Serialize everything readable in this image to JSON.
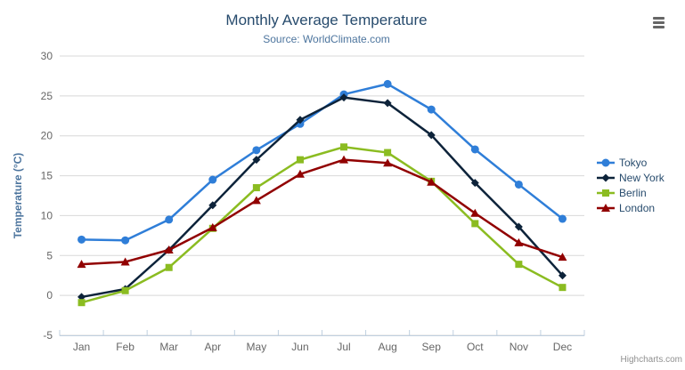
{
  "chart": {
    "title": "Monthly Average Temperature",
    "subtitle": "Source: WorldClimate.com",
    "credits": "Highcharts.com"
  },
  "icons": {
    "context_menu": "hamburger-icon"
  },
  "chart_data": {
    "type": "line",
    "title": "Monthly Average Temperature",
    "subtitle": "Source: WorldClimate.com",
    "categories": [
      "Jan",
      "Feb",
      "Mar",
      "Apr",
      "May",
      "Jun",
      "Jul",
      "Aug",
      "Sep",
      "Oct",
      "Nov",
      "Dec"
    ],
    "series": [
      {
        "name": "Tokyo",
        "marker": "circle",
        "color": "#2f7ed8",
        "values": [
          7.0,
          6.9,
          9.5,
          14.5,
          18.2,
          21.5,
          25.2,
          26.5,
          23.3,
          18.3,
          13.9,
          9.6
        ]
      },
      {
        "name": "New York",
        "marker": "diamond",
        "color": "#0d233a",
        "values": [
          -0.2,
          0.8,
          5.7,
          11.3,
          17.0,
          22.0,
          24.8,
          24.1,
          20.1,
          14.1,
          8.6,
          2.5
        ]
      },
      {
        "name": "Berlin",
        "marker": "square",
        "color": "#8bbc21",
        "values": [
          -0.9,
          0.6,
          3.5,
          8.4,
          13.5,
          17.0,
          18.6,
          17.9,
          14.3,
          9.0,
          3.9,
          1.0
        ]
      },
      {
        "name": "London",
        "marker": "triangle",
        "color": "#910000",
        "values": [
          3.9,
          4.2,
          5.7,
          8.5,
          11.9,
          15.2,
          17.0,
          16.6,
          14.2,
          10.3,
          6.6,
          4.8
        ]
      }
    ],
    "xlabel": "",
    "ylabel": "Temperature (°C)",
    "ylim": [
      -5,
      30
    ],
    "ytick_step": 5,
    "yticks": [
      -5,
      0,
      5,
      10,
      15,
      20,
      25,
      30
    ],
    "grid": true,
    "legend_position": "right"
  },
  "style_colors": {
    "title": "#274b6d",
    "subtitle": "#4d759e",
    "axis_title": "#4d759e",
    "axis_label": "#666666",
    "grid_line": "#d8d8d8",
    "axis_line": "#c0d0e0",
    "legend_text": "#274b6d",
    "credits_text": "#909090",
    "menu_icon": "#666666"
  }
}
